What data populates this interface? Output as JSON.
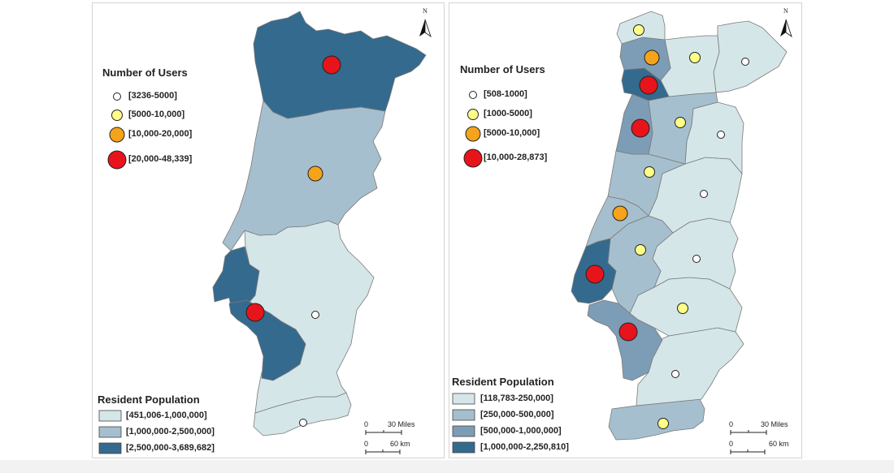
{
  "left_map": {
    "users_legend": {
      "title": "Number of Users",
      "items": [
        {
          "label": "[3236-5000]",
          "color": "#ffffff"
        },
        {
          "label": "[5000-10,000]",
          "color": "#ffff88"
        },
        {
          "label": "[10,000-20,000]",
          "color": "#f5a31a"
        },
        {
          "label": "[20,000-48,339]",
          "color": "#e8141b"
        }
      ]
    },
    "population_legend": {
      "title": "Resident Population",
      "items": [
        {
          "label": "[451,006-1,000,000]",
          "color": "#d5e6e9"
        },
        {
          "label": "[1,000,000-2,500,000]",
          "color": "#a6bfce"
        },
        {
          "label": "[2,500,000-3,689,682]",
          "color": "#346a8e"
        }
      ]
    },
    "scale": {
      "miles_zero": "0",
      "miles_label": "30 Miles",
      "km_zero": "0",
      "km_label": "60 km"
    },
    "north": "N"
  },
  "right_map": {
    "users_legend": {
      "title": "Number of Users",
      "items": [
        {
          "label": "[508-1000]",
          "color": "#ffffff"
        },
        {
          "label": "[1000-5000]",
          "color": "#ffff88"
        },
        {
          "label": "[5000-10,000]",
          "color": "#f5a31a"
        },
        {
          "label": "[10,000-28,873]",
          "color": "#e8141b"
        }
      ]
    },
    "population_legend": {
      "title": "Resident Population",
      "items": [
        {
          "label": "[118,783-250,000]",
          "color": "#d5e6e9"
        },
        {
          "label": "[250,000-500,000]",
          "color": "#a6bfce"
        },
        {
          "label": "[500,000-1,000,000]",
          "color": "#7d9db6"
        },
        {
          "label": "[1,000,000-2,250,810]",
          "color": "#346a8e"
        }
      ]
    },
    "scale": {
      "miles_zero": "0",
      "miles_label": "30 Miles",
      "km_zero": "0",
      "km_label": "60 km"
    },
    "north": "N"
  },
  "colors": {
    "pop_light": "#d5e6e9",
    "pop_mid": "#a6bfce",
    "pop_midplus": "#7d9db6",
    "pop_dark": "#346a8e",
    "boundary": "#7a7a7a"
  }
}
